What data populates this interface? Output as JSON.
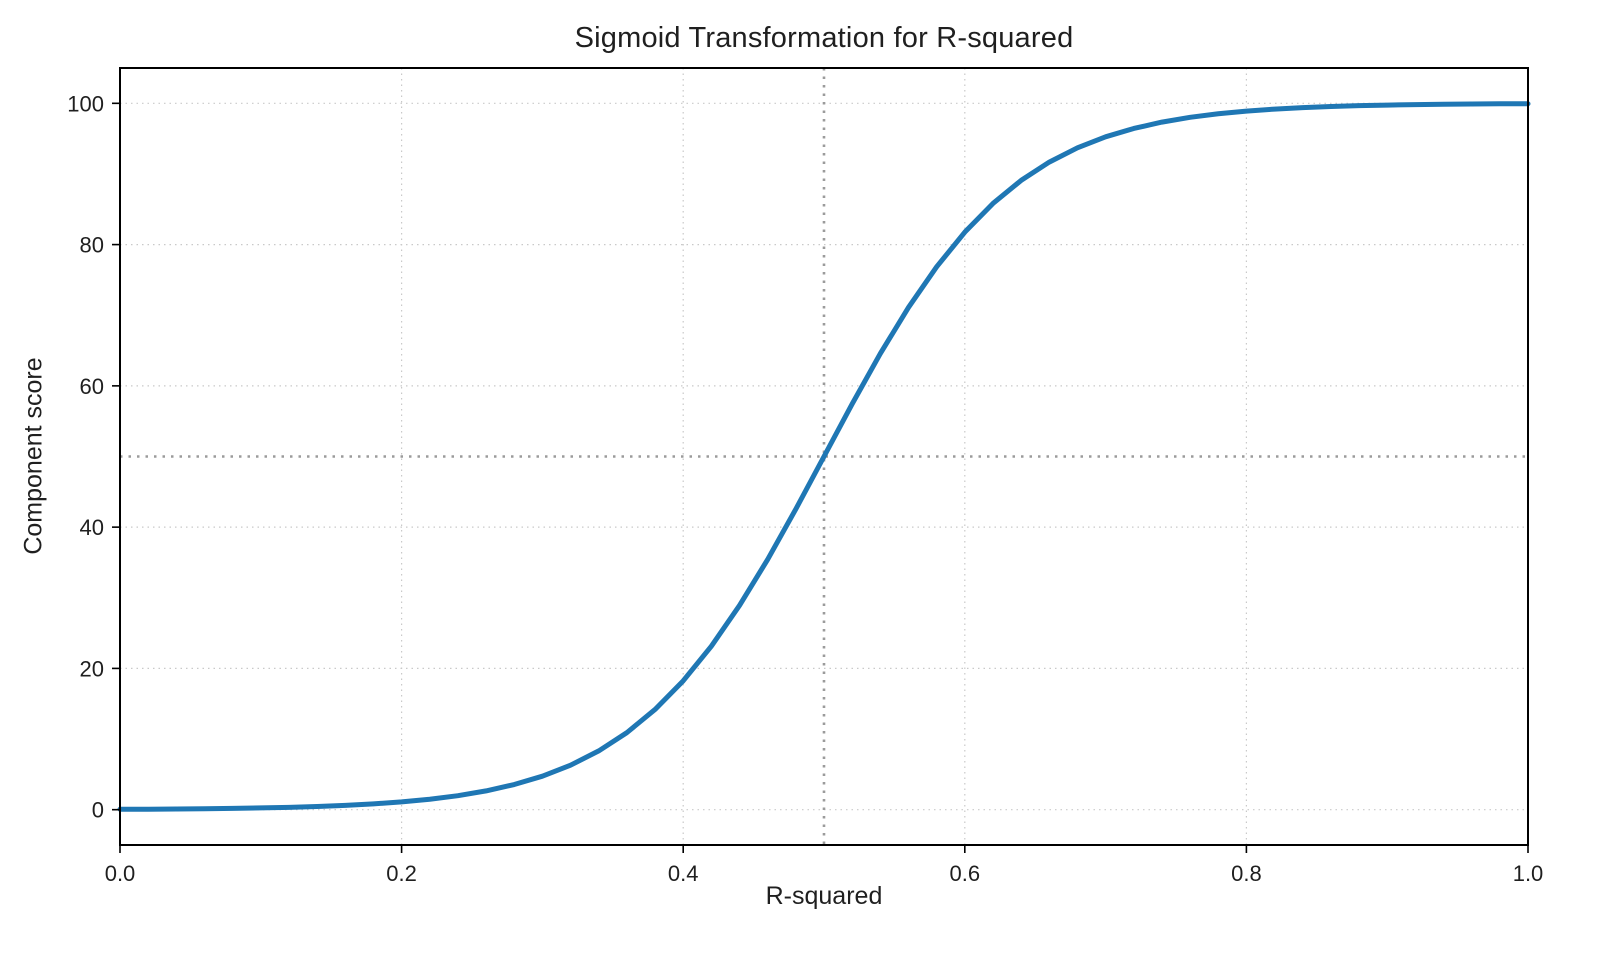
{
  "page": {
    "background": "#ffffff"
  },
  "chart_data": {
    "type": "line",
    "title": "Sigmoid Transformation for R-squared",
    "xlabel": "R-squared",
    "ylabel": "Component score",
    "xlim": [
      0,
      1
    ],
    "ylim": [
      -5,
      105
    ],
    "grid": true,
    "grid_style": "dotted",
    "legend": "none",
    "xticks": {
      "values": [
        0.0,
        0.2,
        0.4,
        0.6,
        0.8,
        1.0
      ],
      "labels": [
        "0.0",
        "0.2",
        "0.4",
        "0.6",
        "0.8",
        "1.0"
      ]
    },
    "yticks": {
      "values": [
        0,
        20,
        40,
        60,
        80,
        100
      ],
      "labels": [
        "0",
        "20",
        "40",
        "60",
        "80",
        "100"
      ]
    },
    "reference_lines": {
      "vertical_x": 0.5,
      "horizontal_y": 50
    },
    "sigmoid_params": {
      "max_score": 100,
      "midpoint_x": 0.5,
      "steepness": 15
    },
    "series": [
      {
        "name": "sigmoid-curve",
        "color": "#1f77b4",
        "line_width": 5,
        "x": [
          0.0,
          0.02,
          0.04,
          0.06,
          0.08,
          0.1,
          0.12,
          0.14,
          0.16,
          0.18,
          0.2,
          0.22,
          0.24,
          0.26,
          0.28,
          0.3,
          0.32,
          0.34,
          0.36,
          0.38,
          0.4,
          0.42,
          0.44,
          0.46,
          0.48,
          0.5,
          0.52,
          0.54,
          0.56,
          0.58,
          0.6,
          0.62,
          0.64,
          0.66,
          0.68,
          0.7,
          0.72,
          0.74,
          0.76,
          0.78,
          0.8,
          0.82,
          0.84,
          0.86,
          0.88,
          0.9,
          0.92,
          0.94,
          0.96,
          0.98,
          1.0
        ],
        "y": [
          0.06,
          0.07,
          0.1,
          0.14,
          0.18,
          0.25,
          0.33,
          0.45,
          0.61,
          0.82,
          1.1,
          1.48,
          1.98,
          2.66,
          3.56,
          4.74,
          6.3,
          8.32,
          10.91,
          14.19,
          18.24,
          23.15,
          28.91,
          35.43,
          42.56,
          50.0,
          57.44,
          64.57,
          71.1,
          76.85,
          81.76,
          85.82,
          89.09,
          91.68,
          93.7,
          95.26,
          96.44,
          97.34,
          98.02,
          98.52,
          98.9,
          99.18,
          99.39,
          99.55,
          99.67,
          99.75,
          99.82,
          99.87,
          99.9,
          99.93,
          99.94
        ]
      }
    ],
    "style": {
      "curve_color": "#1f77b4",
      "grid_color": "#c9c9c9",
      "reference_color": "#9b9b9b",
      "spine_color": "#000000",
      "text_color": "#1f1f1f"
    }
  }
}
